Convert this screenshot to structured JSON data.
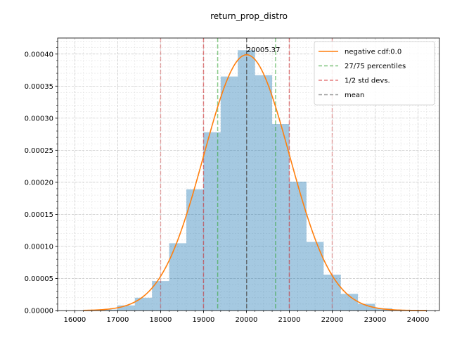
{
  "chart_data": {
    "type": "bar",
    "title": "return_prop_distro",
    "xlabel": "",
    "ylabel": "",
    "xlim": [
      15600,
      24500
    ],
    "ylim": [
      0,
      0.000425
    ],
    "x_ticks": [
      16000,
      17000,
      18000,
      19000,
      20000,
      21000,
      22000,
      23000,
      24000
    ],
    "x_tick_labels": [
      "16000",
      "17000",
      "18000",
      "19000",
      "20000",
      "21000",
      "22000",
      "23000",
      "24000"
    ],
    "y_ticks": [
      0,
      5e-05,
      0.0001,
      0.00015,
      0.0002,
      0.00025,
      0.0003,
      0.00035,
      0.0004
    ],
    "y_tick_labels": [
      "0.00000",
      "0.00005",
      "0.00010",
      "0.00015",
      "0.00020",
      "0.00025",
      "0.00030",
      "0.00035",
      "0.00040"
    ],
    "grid": true,
    "histogram": {
      "color": "#1f77b4",
      "alpha": 0.4,
      "bins": [
        {
          "x0": 16580,
          "x1": 16990,
          "value": 1.5e-06
        },
        {
          "x0": 16990,
          "x1": 17400,
          "value": 8e-06
        },
        {
          "x0": 17400,
          "x1": 17800,
          "value": 2e-05
        },
        {
          "x0": 17800,
          "x1": 18200,
          "value": 4.6e-05
        },
        {
          "x0": 18200,
          "x1": 18600,
          "value": 0.000105
        },
        {
          "x0": 18600,
          "x1": 19000,
          "value": 0.000189
        },
        {
          "x0": 19000,
          "x1": 19400,
          "value": 0.000278
        },
        {
          "x0": 19400,
          "x1": 19800,
          "value": 0.000365
        },
        {
          "x0": 19800,
          "x1": 20200,
          "value": 0.000406
        },
        {
          "x0": 20200,
          "x1": 20600,
          "value": 0.000367
        },
        {
          "x0": 20600,
          "x1": 21000,
          "value": 0.000291
        },
        {
          "x0": 21000,
          "x1": 21400,
          "value": 0.000201
        },
        {
          "x0": 21400,
          "x1": 21800,
          "value": 0.000107
        },
        {
          "x0": 21800,
          "x1": 22200,
          "value": 5.6e-05
        },
        {
          "x0": 22200,
          "x1": 22600,
          "value": 2.6e-05
        },
        {
          "x0": 22600,
          "x1": 23000,
          "value": 1.05e-05
        },
        {
          "x0": 23000,
          "x1": 23400,
          "value": 3.5e-06
        },
        {
          "x0": 23400,
          "x1": 23800,
          "value": 1e-06
        }
      ]
    },
    "series": [
      {
        "name": "negative cdf:0.0",
        "kind": "line",
        "color": "#ff7f0e",
        "mean": 20005.37,
        "std": 1000,
        "x_range": [
          16200,
          24200
        ]
      }
    ],
    "vlines": [
      {
        "group": "27/75 percentiles",
        "x": 19330,
        "color": "#2ca02c"
      },
      {
        "group": "27/75 percentiles",
        "x": 20680,
        "color": "#2ca02c"
      },
      {
        "group": "1/2 std devs.",
        "x": 18000,
        "color": "#d62728",
        "strong": false
      },
      {
        "group": "1/2 std devs.",
        "x": 19000,
        "color": "#d62728",
        "strong": true
      },
      {
        "group": "1/2 std devs.",
        "x": 21000,
        "color": "#d62728",
        "strong": true
      },
      {
        "group": "1/2 std devs.",
        "x": 22000,
        "color": "#d62728",
        "strong": false
      },
      {
        "group": "mean",
        "x": 20005.37,
        "color": "#555555"
      }
    ],
    "annotation": {
      "text": "20005.37",
      "x": 20005.37,
      "y": 0.000403
    },
    "legend": {
      "position": "top-right",
      "entries": [
        {
          "label": "negative cdf:0.0",
          "color": "#ff7f0e",
          "style": "solid"
        },
        {
          "label": "27/75 percentiles",
          "color": "#2ca02c",
          "style": "dashed"
        },
        {
          "label": "1/2 std devs.",
          "color": "#d62728",
          "style": "dashed"
        },
        {
          "label": "mean",
          "color": "#555555",
          "style": "dashed"
        }
      ]
    }
  }
}
